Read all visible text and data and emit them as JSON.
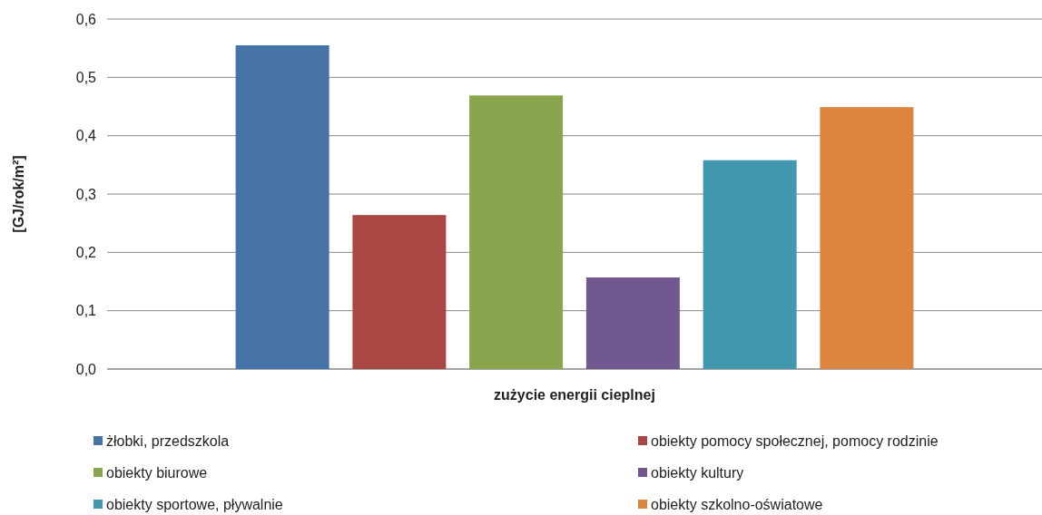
{
  "chart_data": {
    "type": "bar",
    "ylabel": "[GJ/rok/m²]",
    "categories": [
      "zużycie energii cieplnej"
    ],
    "series": [
      {
        "name": "żłobki, przedszkola",
        "color": "#4572a7",
        "values": [
          0.555
        ]
      },
      {
        "name": "obiekty pomocy społecznej, pomocy rodzinie",
        "color": "#aa4643",
        "values": [
          0.264
        ]
      },
      {
        "name": "obiekty biurowe",
        "color": "#89a54e",
        "values": [
          0.469
        ]
      },
      {
        "name": "obiekty kultury",
        "color": "#71588f",
        "values": [
          0.157
        ]
      },
      {
        "name": "obiekty sportowe, pływalnie",
        "color": "#4198af",
        "values": [
          0.358
        ]
      },
      {
        "name": "obiekty szkolno-oświatowe",
        "color": "#db843d",
        "values": [
          0.449
        ]
      }
    ],
    "ylim": [
      0,
      0.6
    ],
    "yticks": [
      {
        "value": 0,
        "label": "0,0"
      },
      {
        "value": 0.1,
        "label": "0,1"
      },
      {
        "value": 0.2,
        "label": "0,2"
      },
      {
        "value": 0.3,
        "label": "0,3"
      },
      {
        "value": 0.4,
        "label": "0,4"
      },
      {
        "value": 0.5,
        "label": "0,5"
      },
      {
        "value": 0.6,
        "label": "0,6"
      }
    ],
    "grid": "y",
    "legend": "bottom"
  }
}
